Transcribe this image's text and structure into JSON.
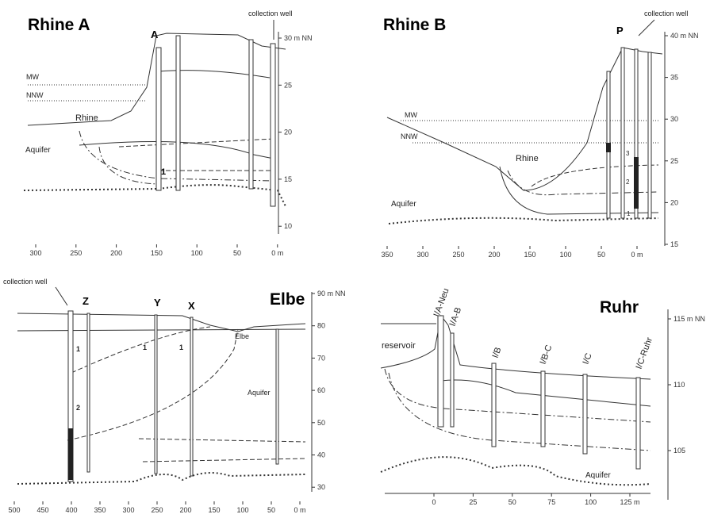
{
  "panels": [
    {
      "title": "Rhine A",
      "labels": [
        "collection well",
        "A",
        "MW",
        "NNW",
        "Rhine",
        "Aquifer",
        "1"
      ],
      "x_ticks": [
        "300",
        "250",
        "200",
        "150",
        "100",
        "50",
        "0 m"
      ],
      "y_ticks": [
        "30 m NN",
        "25",
        "20",
        "15",
        "10"
      ]
    },
    {
      "title": "Rhine B",
      "labels": [
        "collection well",
        "P",
        "MW",
        "NNW",
        "Rhine",
        "Aquifer",
        "1",
        "2",
        "3"
      ],
      "x_ticks": [
        "350",
        "300",
        "250",
        "200",
        "150",
        "100",
        "50",
        "0 m"
      ],
      "y_ticks": [
        "40 m NN",
        "35",
        "30",
        "25",
        "20",
        "15"
      ]
    },
    {
      "title": "Elbe",
      "labels": [
        "collection well",
        "Z",
        "Y",
        "X",
        "1",
        "1",
        "1",
        "2",
        "Elbe",
        "Aquifer"
      ],
      "x_ticks": [
        "500",
        "450",
        "400",
        "350",
        "300",
        "250",
        "200",
        "150",
        "100",
        "50",
        "0 m"
      ],
      "y_ticks": [
        "90 m NN",
        "80",
        "70",
        "60",
        "50",
        "40",
        "30"
      ]
    },
    {
      "title": "Ruhr",
      "labels": [
        "reservoir",
        "I/A-Neu",
        "I/A-B",
        "I/B",
        "I/B-C",
        "I/C",
        "I/C-Ruhr",
        "Aquifer"
      ],
      "x_ticks": [
        "0",
        "25",
        "50",
        "75",
        "100",
        "125 m"
      ],
      "y_ticks": [
        "115 m NN",
        "110",
        "105"
      ]
    }
  ]
}
